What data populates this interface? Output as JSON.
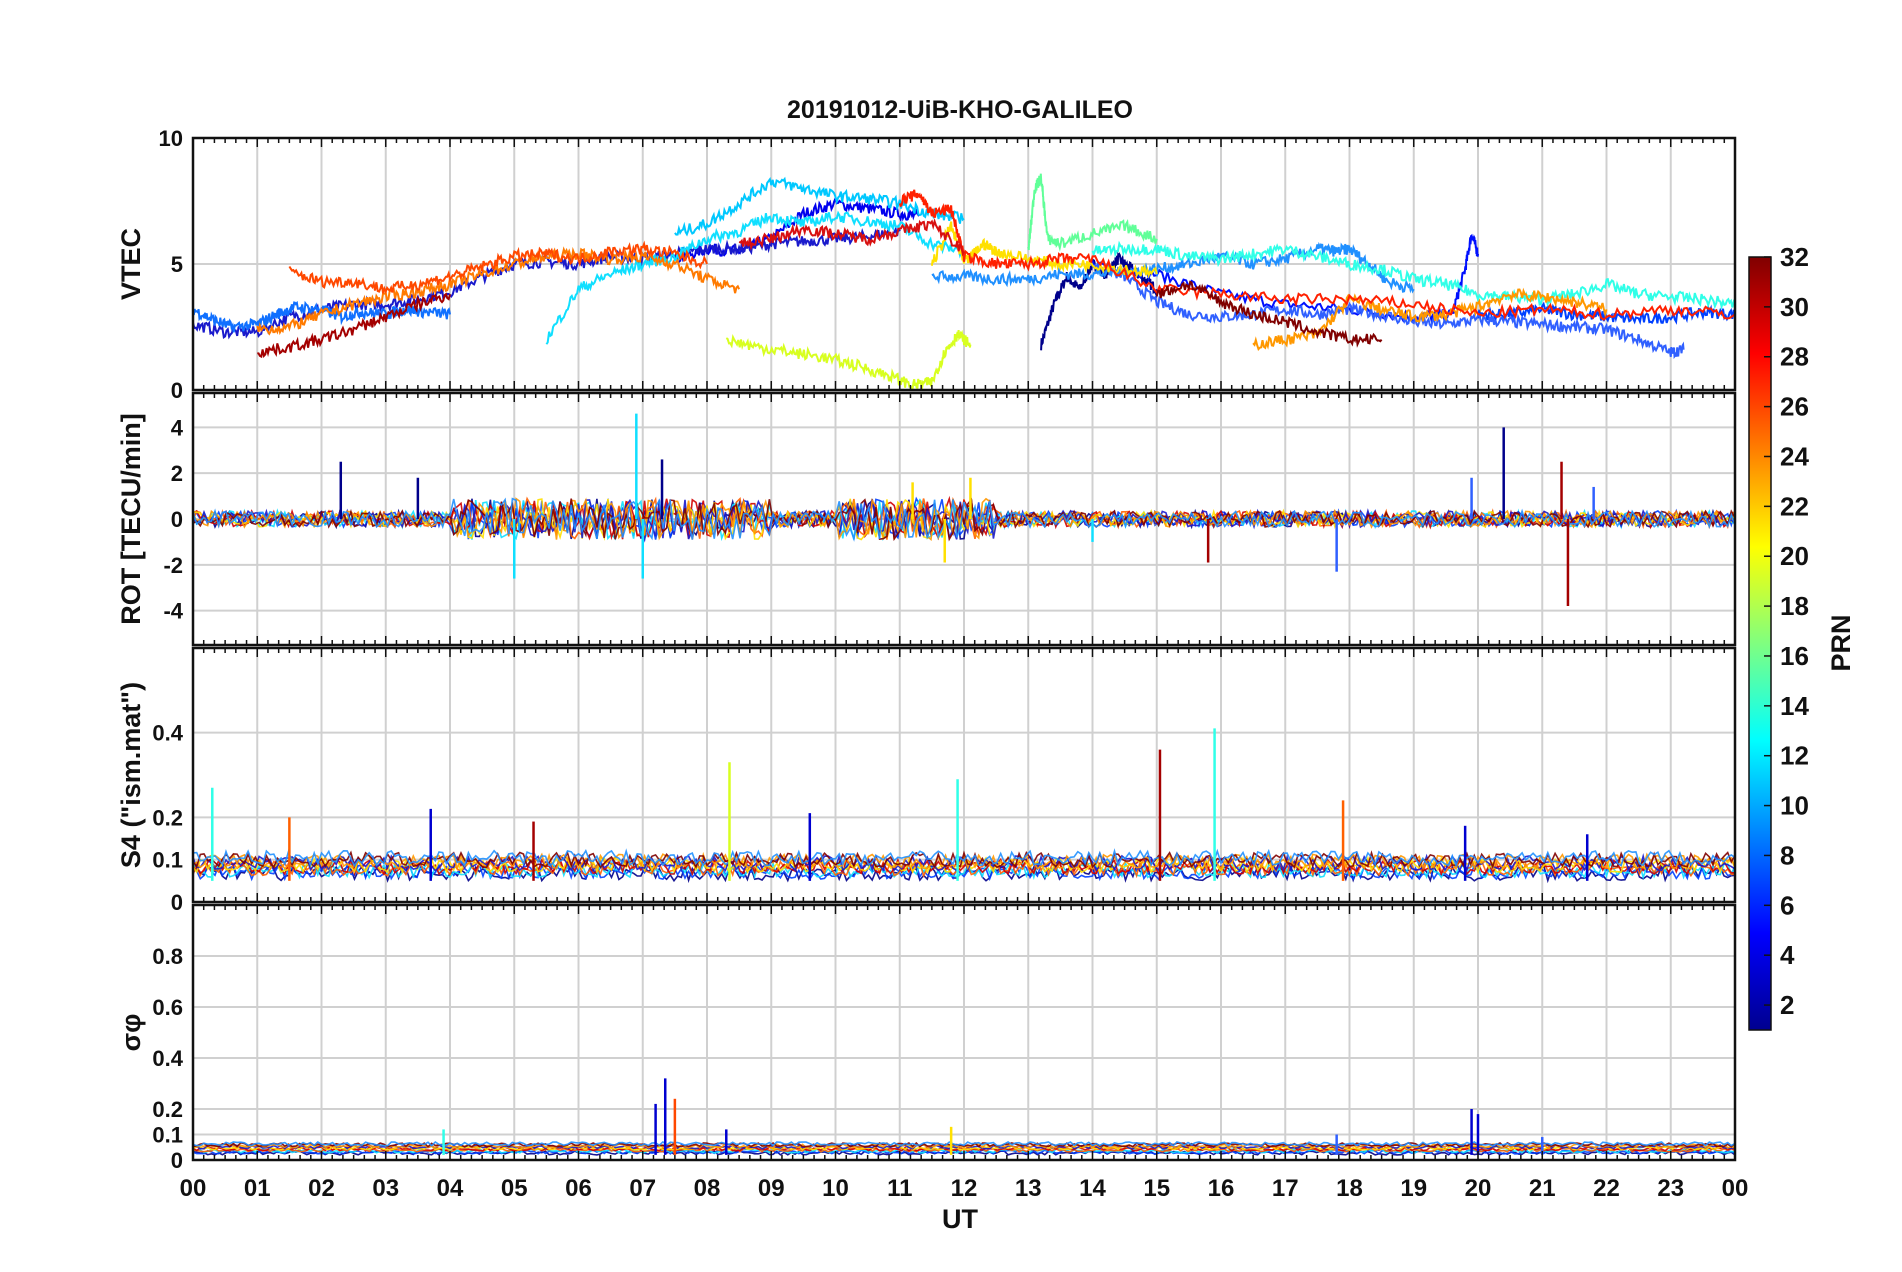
{
  "chart_data": {
    "type": "line",
    "title": "20191012-UiB-KHO-GALILEO",
    "xlabel": "UT",
    "xlim": [
      0,
      24
    ],
    "x_tick_labels": [
      "00",
      "01",
      "02",
      "03",
      "04",
      "05",
      "06",
      "07",
      "08",
      "09",
      "10",
      "11",
      "12",
      "13",
      "14",
      "15",
      "16",
      "17",
      "18",
      "19",
      "20",
      "21",
      "22",
      "23",
      "00"
    ],
    "grid": true,
    "colorbar": {
      "label": "PRN",
      "range": [
        1,
        32
      ],
      "tick_labels": [
        "2",
        "4",
        "6",
        "8",
        "10",
        "12",
        "14",
        "16",
        "18",
        "20",
        "22",
        "24",
        "26",
        "28",
        "30",
        "32"
      ]
    },
    "panels": [
      {
        "id": "vtec",
        "ylabel": "VTEC",
        "ylim": [
          0,
          10
        ],
        "y_tick_labels": [
          "0",
          "5",
          "10"
        ],
        "series": [
          {
            "name": "PRN 1",
            "color": "#00008b",
            "x": [
              13.2,
              13.4,
              13.6,
              13.8,
              14.0,
              14.2,
              14.4,
              14.6,
              14.8,
              15.0
            ],
            "values": [
              1.8,
              3.4,
              4.5,
              4.0,
              5.0,
              4.6,
              5.2,
              4.8,
              4.4,
              4.0
            ]
          },
          {
            "name": "PRN 3",
            "color": "#0000ee",
            "x": [
              7.5,
              8.0,
              8.5,
              9.0,
              9.5,
              10.0,
              10.5,
              11.0,
              11.3
            ],
            "values": [
              5.2,
              5.6,
              5.5,
              6.0,
              7.0,
              7.4,
              7.2,
              7.0,
              6.9
            ]
          },
          {
            "name": "PRN 4",
            "color": "#0010ff",
            "x": [
              14.0,
              15.0,
              16.0,
              17.0,
              18.0,
              19.0,
              19.6,
              19.8,
              19.9,
              20.0
            ],
            "values": [
              5.0,
              4.6,
              3.8,
              3.4,
              3.2,
              2.9,
              3.0,
              4.8,
              6.2,
              5.4
            ]
          },
          {
            "name": "PRN 5",
            "color": "#1a1acc",
            "x": [
              0.0,
              0.5,
              1.0,
              1.5,
              2.0,
              2.5,
              3.0,
              3.5,
              4.0,
              4.5,
              5.0,
              5.5,
              6.0,
              6.5,
              7.0,
              7.5,
              8.0,
              8.5,
              9.0,
              9.5,
              10.0,
              10.5,
              11.0
            ],
            "values": [
              2.6,
              2.3,
              2.3,
              2.9,
              3.2,
              3.4,
              3.4,
              3.6,
              3.9,
              4.5,
              5.0,
              5.1,
              5.0,
              5.3,
              5.2,
              5.4,
              5.6,
              5.6,
              5.8,
              5.9,
              6.0,
              6.1,
              6.3
            ]
          },
          {
            "name": "PRN 7",
            "color": "#0040ff",
            "x": [
              20.0,
              20.5,
              21.0,
              21.5,
              22.0,
              22.5,
              23.0,
              23.5,
              24.0
            ],
            "values": [
              3.0,
              3.0,
              3.2,
              3.0,
              2.9,
              2.8,
              2.9,
              3.1,
              3.0
            ]
          },
          {
            "name": "PRN 8",
            "color": "#3060ff",
            "x": [
              14.0,
              14.5,
              15.0,
              15.5,
              16.0,
              16.5,
              17.0,
              17.5,
              18.0,
              18.5,
              19.0,
              19.5,
              20.0,
              20.5,
              21.0,
              21.5,
              22.0,
              22.5,
              23.0,
              23.2
            ],
            "values": [
              5.0,
              4.5,
              3.5,
              3.0,
              2.9,
              3.0,
              3.2,
              3.0,
              3.2,
              3.0,
              2.7,
              2.6,
              2.8,
              2.7,
              2.6,
              2.5,
              2.4,
              2.0,
              1.5,
              1.6
            ]
          },
          {
            "name": "PRN 9",
            "color": "#1070ff",
            "x": [
              0.0,
              0.3,
              0.6,
              1.0,
              1.3,
              1.6,
              2.0,
              2.3,
              2.6,
              3.0,
              3.3,
              3.6,
              4.0
            ],
            "values": [
              3.2,
              2.8,
              2.5,
              2.6,
              3.0,
              3.3,
              3.2,
              2.9,
              3.1,
              3.0,
              3.2,
              3.1,
              3.0
            ]
          },
          {
            "name": "PRN 10",
            "color": "#2090ff",
            "x": [
              11.5,
              12.0,
              12.5,
              13.0,
              13.5,
              14.0,
              14.5,
              15.0,
              15.5,
              16.0,
              16.5,
              17.0,
              17.5,
              17.8,
              18.0,
              18.3,
              18.6,
              19.0
            ],
            "values": [
              4.5,
              4.5,
              4.4,
              4.4,
              4.6,
              4.6,
              4.7,
              4.8,
              5.0,
              5.3,
              5.0,
              5.2,
              5.6,
              5.5,
              5.6,
              5.0,
              4.3,
              4.0
            ]
          },
          {
            "name": "PRN 12",
            "color": "#00c8ff",
            "x": [
              7.5,
              8.0,
              8.5,
              9.0,
              9.5,
              10.0,
              10.5,
              11.0,
              11.5,
              12.0
            ],
            "values": [
              6.2,
              6.6,
              7.4,
              8.3,
              8.0,
              7.7,
              7.6,
              7.4,
              7.0,
              6.8
            ]
          },
          {
            "name": "PRN 13",
            "color": "#10dfff",
            "x": [
              5.5,
              6.0,
              6.5,
              7.0,
              7.5,
              8.0,
              8.5,
              9.0,
              9.5,
              10.0,
              10.5,
              11.0,
              11.5,
              12.0
            ],
            "values": [
              2.0,
              4.0,
              4.6,
              5.0,
              5.3,
              6.0,
              6.3,
              6.9,
              6.6,
              6.9,
              6.7,
              6.5,
              5.8,
              5.5
            ]
          },
          {
            "name": "PRN 14",
            "color": "#30ffe8",
            "x": [
              14.0,
              14.5,
              15.0,
              15.5,
              16.0,
              16.5,
              17.0,
              17.5,
              18.0,
              18.5,
              19.0,
              19.5,
              20.0,
              20.5,
              21.0,
              21.5,
              22.0,
              22.5,
              23.0,
              23.5,
              24.0
            ],
            "values": [
              5.5,
              5.6,
              5.6,
              5.3,
              5.2,
              5.4,
              5.6,
              5.3,
              5.0,
              4.8,
              4.4,
              4.2,
              3.8,
              3.7,
              3.6,
              3.8,
              4.2,
              3.8,
              3.7,
              3.6,
              3.4
            ]
          },
          {
            "name": "PRN 15",
            "color": "#60ff98",
            "x": [
              13.0,
              13.1,
              13.2,
              13.3,
              13.5,
              14.0,
              14.5,
              15.0
            ],
            "values": [
              5.5,
              8.0,
              8.4,
              6.0,
              5.8,
              6.2,
              6.5,
              6.0
            ]
          },
          {
            "name": "PRN 19",
            "color": "#d8ff20",
            "x": [
              8.3,
              8.8,
              9.3,
              9.8,
              10.3,
              10.8,
              11.2,
              11.5,
              11.7,
              11.9,
              12.1
            ],
            "values": [
              2.0,
              1.7,
              1.5,
              1.3,
              1.0,
              0.6,
              0.2,
              0.3,
              1.5,
              2.2,
              1.8
            ]
          },
          {
            "name": "PRN 21",
            "color": "#ffe000",
            "x": [
              11.5,
              11.8,
              12.0,
              12.3,
              12.5,
              13.0,
              13.5,
              14.0,
              14.5,
              15.0
            ],
            "values": [
              5.0,
              6.5,
              5.0,
              5.8,
              5.5,
              5.2,
              5.0,
              5.0,
              4.8,
              4.6
            ]
          },
          {
            "name": "PRN 23",
            "color": "#ff9800",
            "x": [
              16.5,
              17.0,
              17.5,
              18.0,
              18.5,
              19.0,
              19.5,
              20.0,
              20.5,
              21.0,
              21.5,
              22.0
            ],
            "values": [
              1.8,
              2.0,
              2.2,
              3.6,
              3.2,
              2.9,
              3.0,
              3.3,
              3.8,
              3.7,
              3.5,
              3.2
            ]
          },
          {
            "name": "PRN 24",
            "color": "#ff7a00",
            "x": [
              1.0,
              1.5,
              2.0,
              2.5,
              3.0,
              3.5,
              4.0,
              4.5,
              5.0,
              5.5,
              6.0,
              6.5,
              7.0,
              7.5,
              8.0,
              8.5
            ],
            "values": [
              2.4,
              2.5,
              3.0,
              3.4,
              3.7,
              3.9,
              4.2,
              4.6,
              5.0,
              5.3,
              5.4,
              5.2,
              5.3,
              5.0,
              4.4,
              4.0
            ]
          },
          {
            "name": "PRN 26",
            "color": "#ff4800",
            "x": [
              1.5,
              2.0,
              2.5,
              3.0,
              3.5,
              4.0,
              4.5,
              5.0,
              5.5,
              6.0,
              6.5,
              7.0,
              7.5,
              8.0
            ],
            "values": [
              4.7,
              4.3,
              4.3,
              4.0,
              4.2,
              4.5,
              4.9,
              5.3,
              5.4,
              5.2,
              5.5,
              5.6,
              5.4,
              5.0
            ]
          },
          {
            "name": "PRN 27",
            "color": "#ff2000",
            "x": [
              11.0,
              11.3,
              11.5,
              11.8,
              12.0,
              12.5,
              13.0,
              13.5,
              14.0,
              15.0,
              16.0,
              17.0,
              18.0,
              19.0,
              20.0,
              21.0,
              22.0,
              23.0,
              24.0
            ],
            "values": [
              7.5,
              7.8,
              7.0,
              7.2,
              5.3,
              5.0,
              5.0,
              5.2,
              5.2,
              4.0,
              3.8,
              3.6,
              3.6,
              3.4,
              3.0,
              3.2,
              3.0,
              3.2,
              3.0
            ]
          },
          {
            "name": "PRN 29",
            "color": "#d81010",
            "x": [
              8.5,
              9.0,
              9.5,
              10.0,
              10.5,
              11.0,
              11.5,
              12.0
            ],
            "values": [
              5.8,
              6.0,
              6.4,
              6.2,
              6.0,
              6.3,
              6.6,
              5.5
            ]
          },
          {
            "name": "PRN 31",
            "color": "#a40000",
            "x": [
              1.0,
              1.5,
              2.0,
              2.5,
              3.0,
              3.5,
              4.0
            ],
            "values": [
              1.5,
              1.7,
              2.0,
              2.4,
              2.9,
              3.4,
              3.8
            ]
          },
          {
            "name": "PRN 32",
            "color": "#800000",
            "x": [
              15.0,
              15.5,
              16.0,
              16.5,
              17.0,
              17.5,
              18.0,
              18.5
            ],
            "values": [
              3.8,
              4.2,
              3.5,
              3.0,
              2.7,
              2.3,
              2.0,
              2.0
            ]
          }
        ]
      },
      {
        "id": "rot",
        "ylabel": "ROT [TECU/min]",
        "ylim": [
          -5.5,
          5.5
        ],
        "y_tick_labels": [
          "-4",
          "-2",
          "0",
          "2",
          "4"
        ],
        "spikes": [
          {
            "name": "PRN 5",
            "color": "#00008b",
            "x": [
              2.3,
              3.5,
              7.3,
              20.4
            ],
            "values": [
              2.5,
              1.8,
              2.6,
              4.0
            ]
          },
          {
            "name": "PRN 13",
            "color": "#10dfff",
            "x": [
              5.0,
              6.9,
              7.0,
              14.0
            ],
            "values": [
              -2.6,
              4.6,
              -2.6,
              -1.0
            ]
          },
          {
            "name": "PRN 21",
            "color": "#ffe000",
            "x": [
              11.2,
              11.7,
              12.1
            ],
            "values": [
              1.6,
              -1.9,
              1.8
            ]
          },
          {
            "name": "PRN 8",
            "color": "#3060ff",
            "x": [
              17.8,
              21.8,
              19.9
            ],
            "values": [
              -2.3,
              1.4,
              1.8
            ]
          },
          {
            "name": "PRN 31",
            "color": "#a40000",
            "x": [
              15.8,
              21.3,
              21.4
            ],
            "values": [
              -1.9,
              2.5,
              -3.8
            ]
          }
        ]
      },
      {
        "id": "s4",
        "ylabel": "S4 (\"ism.mat\")",
        "ylim": [
          0,
          0.6
        ],
        "y_tick_labels": [
          "0",
          "0.1",
          "0.2",
          "0.4"
        ],
        "spikes": [
          {
            "name": "PRN 13",
            "color": "#30ffe8",
            "x": [
              0.3,
              11.9,
              15.9
            ],
            "values": [
              0.27,
              0.29,
              0.41
            ]
          },
          {
            "name": "PRN 24",
            "color": "#ff6000",
            "x": [
              1.5,
              17.9
            ],
            "values": [
              0.2,
              0.24
            ]
          },
          {
            "name": "PRN 5",
            "color": "#0000d0",
            "x": [
              3.7,
              9.6,
              19.8,
              21.7
            ],
            "values": [
              0.22,
              0.21,
              0.18,
              0.16
            ]
          },
          {
            "name": "PRN 19",
            "color": "#d8ff20",
            "x": [
              8.35
            ],
            "values": [
              0.33
            ]
          },
          {
            "name": "PRN 31",
            "color": "#a40000",
            "x": [
              15.05,
              5.3
            ],
            "values": [
              0.36,
              0.19
            ]
          }
        ]
      },
      {
        "id": "sigma_phi",
        "ylabel": "σφ",
        "ylim": [
          0,
          1
        ],
        "y_tick_labels": [
          "0",
          "0.1",
          "0.2",
          "0.4",
          "0.6",
          "0.8"
        ],
        "spikes": [
          {
            "name": "PRN 5",
            "color": "#0000d0",
            "x": [
              7.2,
              7.35,
              8.3,
              19.9,
              20.0
            ],
            "values": [
              0.22,
              0.32,
              0.12,
              0.2,
              0.18
            ]
          },
          {
            "name": "PRN 13",
            "color": "#30ffe8",
            "x": [
              3.9
            ],
            "values": [
              0.12
            ]
          },
          {
            "name": "PRN 26",
            "color": "#ff4800",
            "x": [
              7.5
            ],
            "values": [
              0.24
            ]
          },
          {
            "name": "PRN 21",
            "color": "#ffe000",
            "x": [
              11.8
            ],
            "values": [
              0.13
            ]
          },
          {
            "name": "PRN 8",
            "color": "#3060ff",
            "x": [
              17.8,
              21.0
            ],
            "values": [
              0.1,
              0.09
            ]
          }
        ]
      }
    ]
  }
}
